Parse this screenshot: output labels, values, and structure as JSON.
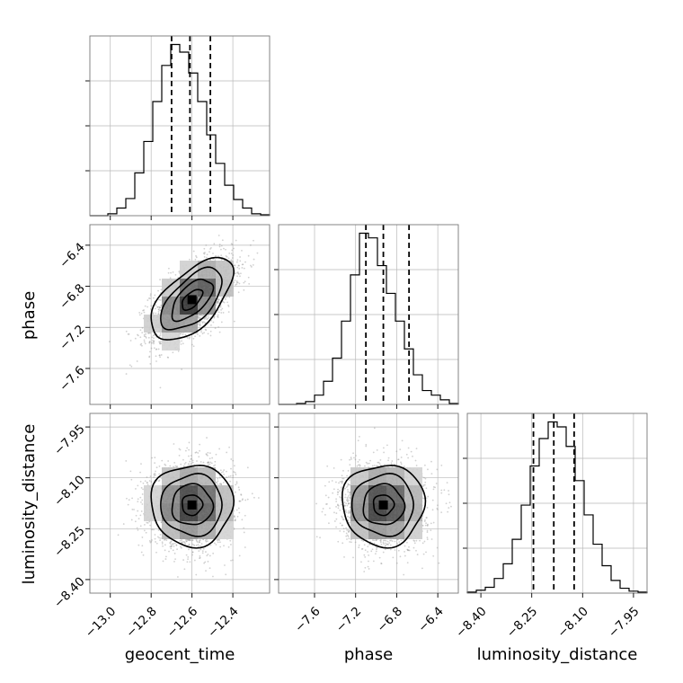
{
  "chart_data": {
    "type": "corner",
    "parameters": [
      "geocent_time",
      "phase",
      "luminosity_distance"
    ],
    "ranges": {
      "geocent_time": [
        -13.1,
        -12.22
      ],
      "phase": [
        -7.95,
        -6.2
      ],
      "luminosity_distance": [
        -8.44,
        -7.91
      ]
    },
    "ticks": {
      "geocent_time": [
        -13.0,
        -12.8,
        -12.6,
        -12.4
      ],
      "phase": [
        -7.6,
        -7.2,
        -6.8,
        -6.4
      ],
      "luminosity_distance": [
        -8.4,
        -8.25,
        -8.1,
        -7.95
      ]
    },
    "tick_labels": {
      "geocent_time": [
        "−13.0",
        "−12.8",
        "−12.6",
        "−12.4"
      ],
      "phase": [
        "−7.6",
        "−7.2",
        "−6.8",
        "−6.4"
      ],
      "luminosity_distance": [
        "−8.40",
        "−8.25",
        "−8.10",
        "−7.95"
      ]
    },
    "quantiles": {
      "geocent_time": [
        -12.7,
        -12.61,
        -12.51
      ],
      "phase": [
        -7.1,
        -6.93,
        -6.68
      ],
      "luminosity_distance": [
        -8.245,
        -8.185,
        -8.125
      ]
    },
    "histograms": {
      "geocent_time": {
        "edges": [
          -13.1,
          -13.056,
          -13.012,
          -12.968,
          -12.924,
          -12.88,
          -12.836,
          -12.792,
          -12.748,
          -12.704,
          -12.66,
          -12.616,
          -12.572,
          -12.528,
          -12.484,
          -12.44,
          -12.396,
          -12.352,
          -12.308,
          -12.264,
          -12.22
        ],
        "counts": [
          0,
          0,
          2,
          8,
          18,
          45,
          78,
          120,
          158,
          180,
          172,
          150,
          120,
          85,
          55,
          32,
          17,
          8,
          2,
          1
        ]
      },
      "phase": {
        "edges": [
          -7.95,
          -7.8625,
          -7.775,
          -7.6875,
          -7.6,
          -7.5125,
          -7.425,
          -7.3375,
          -7.25,
          -7.1625,
          -7.075,
          -6.9875,
          -6.9,
          -6.8125,
          -6.725,
          -6.6375,
          -6.55,
          -6.4625,
          -6.375,
          -6.2875,
          -6.2
        ],
        "counts": [
          0,
          0,
          1,
          3,
          10,
          25,
          50,
          90,
          140,
          185,
          180,
          150,
          120,
          90,
          60,
          32,
          15,
          10,
          5,
          1
        ]
      },
      "luminosity_distance": {
        "edges": [
          -8.44,
          -8.4135,
          -8.387,
          -8.3605,
          -8.334,
          -8.3075,
          -8.281,
          -8.2545,
          -8.228,
          -8.2015,
          -8.175,
          -8.1485,
          -8.122,
          -8.0955,
          -8.069,
          -8.0425,
          -8.016,
          -7.9895,
          -7.963,
          -7.9365,
          -7.91
        ],
        "counts": [
          1,
          3,
          6,
          15,
          30,
          55,
          90,
          130,
          158,
          175,
          170,
          150,
          115,
          80,
          50,
          28,
          13,
          5,
          2,
          1
        ]
      }
    },
    "pairs": [
      {
        "x": "geocent_time",
        "y": "phase",
        "mean": [
          -12.6,
          -6.93
        ],
        "sd": [
          0.1,
          0.2
        ],
        "rho": 0.6
      },
      {
        "x": "geocent_time",
        "y": "luminosity_distance",
        "mean": [
          -12.6,
          -8.18
        ],
        "sd": [
          0.1,
          0.06
        ],
        "rho": 0.0
      },
      {
        "x": "phase",
        "y": "luminosity_distance",
        "mean": [
          -6.93,
          -8.18
        ],
        "sd": [
          0.2,
          0.06
        ],
        "rho": 0.0
      }
    ],
    "grid": true
  }
}
